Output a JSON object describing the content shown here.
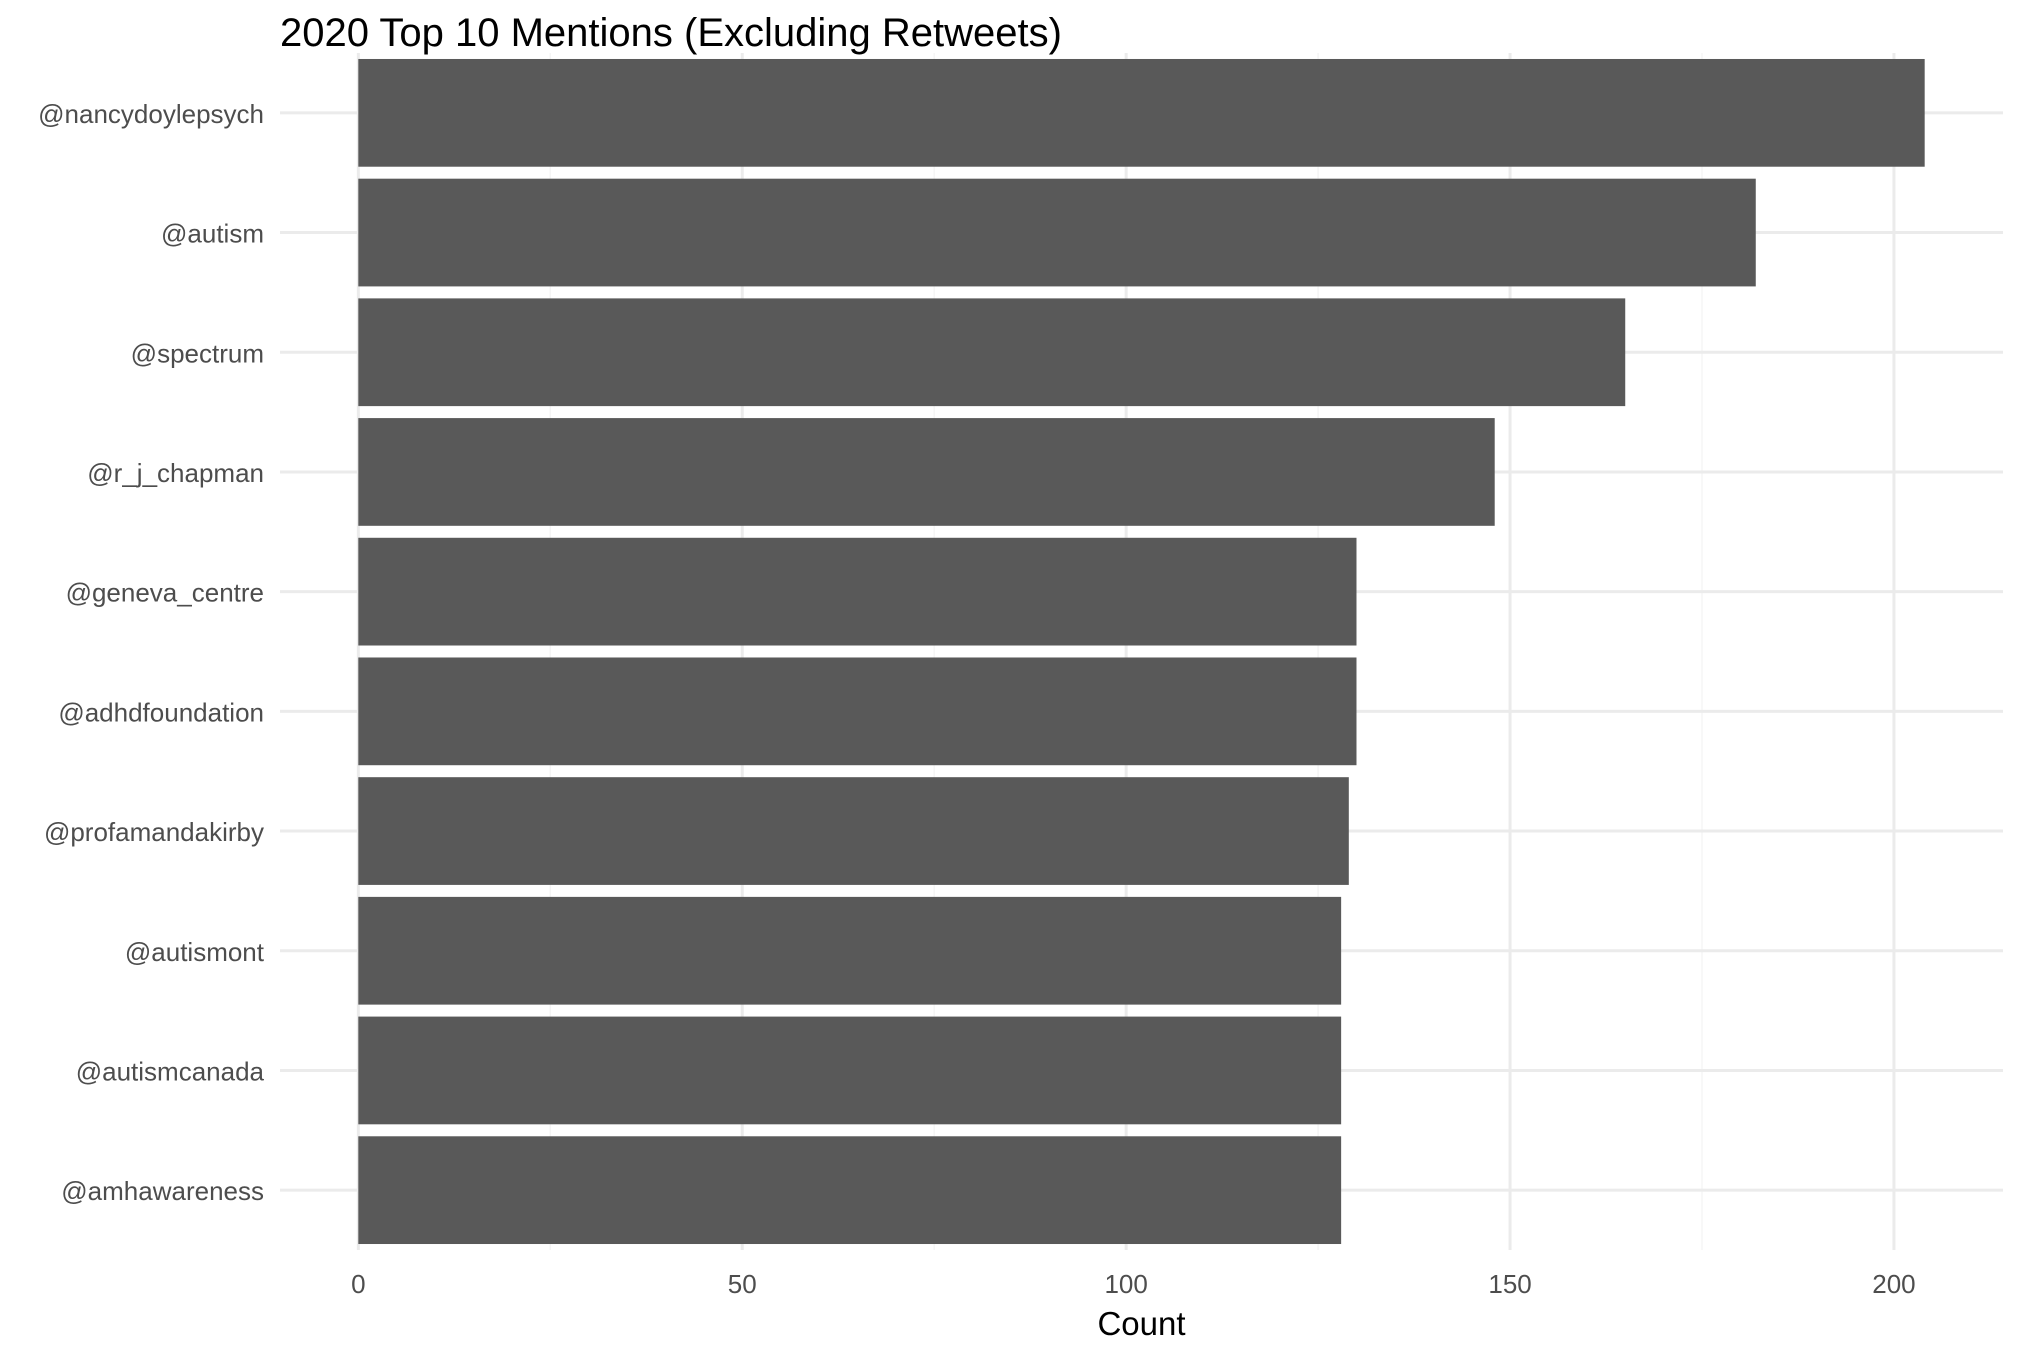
{
  "chart_data": {
    "type": "bar",
    "orientation": "horizontal",
    "title": "2020 Top 10 Mentions (Excluding Retweets)",
    "xlabel": "Count",
    "ylabel": "",
    "categories": [
      "@nancydoylepsych",
      "@autism",
      "@spectrum",
      "@r_j_chapman",
      "@geneva_centre",
      "@adhdfoundation",
      "@profamandakirby",
      "@autismont",
      "@autismcanada",
      "@amhawareness"
    ],
    "values": [
      204,
      182,
      165,
      148,
      130,
      130,
      129,
      128,
      128,
      128
    ],
    "xlim": [
      -10.2,
      214.2
    ],
    "x_ticks": [
      "0",
      "50",
      "100",
      "150",
      "200"
    ],
    "grid": true,
    "legend": "none",
    "colors": {
      "bar": "#595959",
      "grid_major": "#ebebeb",
      "grid_minor": "#f5f5f5",
      "background": "#ffffff"
    }
  }
}
